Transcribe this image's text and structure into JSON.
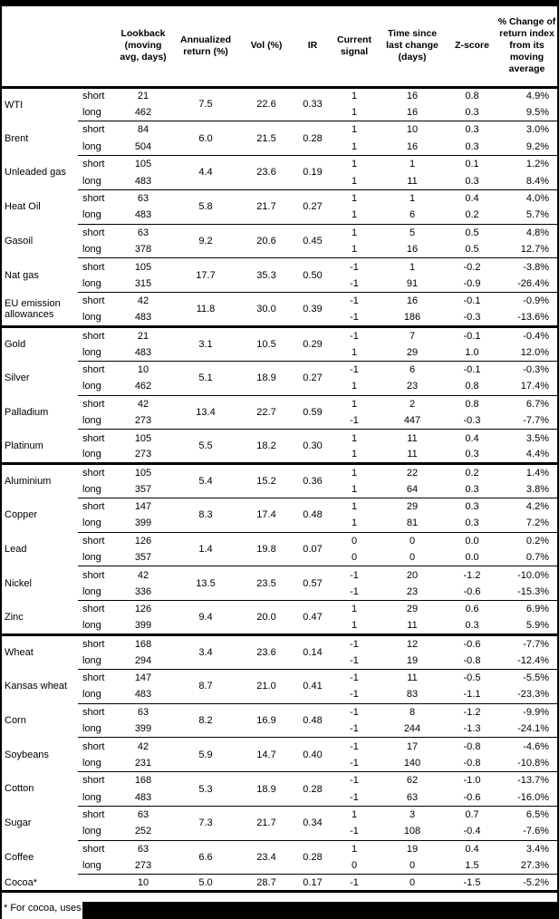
{
  "header": {
    "columns": [
      "",
      "",
      "Lookback\n(moving\navg, days)",
      "Annualized\nreturn (%)",
      "Vol (%)",
      "IR",
      "Current\nsignal",
      "Time since\nlast change\n(days)",
      "Z-score",
      "% Change of\nreturn index\nfrom its\nmoving\naverage"
    ]
  },
  "groups": [
    {
      "commodities": [
        {
          "name": "WTI",
          "ann_return": "7.5",
          "vol": "22.6",
          "ir": "0.33",
          "rows": [
            {
              "period": "short",
              "lookback": "21",
              "signal": "1",
              "time_since": "16",
              "z": "0.8",
              "change": "4.9%"
            },
            {
              "period": "long",
              "lookback": "462",
              "signal": "1",
              "time_since": "16",
              "z": "0.3",
              "change": "9.5%"
            }
          ]
        },
        {
          "name": "Brent",
          "ann_return": "6.0",
          "vol": "21.5",
          "ir": "0.28",
          "rows": [
            {
              "period": "short",
              "lookback": "84",
              "signal": "1",
              "time_since": "10",
              "z": "0.3",
              "change": "3.0%"
            },
            {
              "period": "long",
              "lookback": "504",
              "signal": "1",
              "time_since": "16",
              "z": "0.3",
              "change": "9.2%"
            }
          ]
        },
        {
          "name": "Unleaded gas",
          "ann_return": "4.4",
          "vol": "23.6",
          "ir": "0.19",
          "rows": [
            {
              "period": "short",
              "lookback": "105",
              "signal": "1",
              "time_since": "1",
              "z": "0.1",
              "change": "1.2%"
            },
            {
              "period": "long",
              "lookback": "483",
              "signal": "1",
              "time_since": "11",
              "z": "0.3",
              "change": "8.4%"
            }
          ]
        },
        {
          "name": "Heat Oil",
          "ann_return": "5.8",
          "vol": "21.7",
          "ir": "0.27",
          "rows": [
            {
              "period": "short",
              "lookback": "63",
              "signal": "1",
              "time_since": "1",
              "z": "0.4",
              "change": "4.0%"
            },
            {
              "period": "long",
              "lookback": "483",
              "signal": "1",
              "time_since": "6",
              "z": "0.2",
              "change": "5.7%"
            }
          ]
        },
        {
          "name": "Gasoil",
          "ann_return": "9.2",
          "vol": "20.6",
          "ir": "0.45",
          "rows": [
            {
              "period": "short",
              "lookback": "63",
              "signal": "1",
              "time_since": "5",
              "z": "0.5",
              "change": "4.8%"
            },
            {
              "period": "long",
              "lookback": "378",
              "signal": "1",
              "time_since": "16",
              "z": "0.5",
              "change": "12.7%"
            }
          ]
        },
        {
          "name": "Nat gas",
          "ann_return": "17.7",
          "vol": "35.3",
          "ir": "0.50",
          "rows": [
            {
              "period": "short",
              "lookback": "105",
              "signal": "-1",
              "time_since": "1",
              "z": "-0.2",
              "change": "-3.8%"
            },
            {
              "period": "long",
              "lookback": "315",
              "signal": "-1",
              "time_since": "91",
              "z": "-0.9",
              "change": "-26.4%"
            }
          ]
        },
        {
          "name": "EU emission allowances",
          "ann_return": "11.8",
          "vol": "30.0",
          "ir": "0.39",
          "rows": [
            {
              "period": "short",
              "lookback": "42",
              "signal": "-1",
              "time_since": "16",
              "z": "-0.1",
              "change": "-0.9%"
            },
            {
              "period": "long",
              "lookback": "483",
              "signal": "-1",
              "time_since": "186",
              "z": "-0.3",
              "change": "-13.6%"
            }
          ]
        }
      ]
    },
    {
      "commodities": [
        {
          "name": "Gold",
          "ann_return": "3.1",
          "vol": "10.5",
          "ir": "0.29",
          "rows": [
            {
              "period": "short",
              "lookback": "21",
              "signal": "-1",
              "time_since": "7",
              "z": "-0.1",
              "change": "-0.4%"
            },
            {
              "period": "long",
              "lookback": "483",
              "signal": "1",
              "time_since": "29",
              "z": "1.0",
              "change": "12.0%"
            }
          ]
        },
        {
          "name": "Silver",
          "ann_return": "5.1",
          "vol": "18.9",
          "ir": "0.27",
          "rows": [
            {
              "period": "short",
              "lookback": "10",
              "signal": "-1",
              "time_since": "6",
              "z": "-0.1",
              "change": "-0.3%"
            },
            {
              "period": "long",
              "lookback": "462",
              "signal": "1",
              "time_since": "23",
              "z": "0.8",
              "change": "17.4%"
            }
          ]
        },
        {
          "name": "Palladium",
          "ann_return": "13.4",
          "vol": "22.7",
          "ir": "0.59",
          "rows": [
            {
              "period": "short",
              "lookback": "42",
              "signal": "1",
              "time_since": "2",
              "z": "0.8",
              "change": "6.7%"
            },
            {
              "period": "long",
              "lookback": "273",
              "signal": "-1",
              "time_since": "447",
              "z": "-0.3",
              "change": "-7.7%"
            }
          ]
        },
        {
          "name": "Platinum",
          "ann_return": "5.5",
          "vol": "18.2",
          "ir": "0.30",
          "rows": [
            {
              "period": "short",
              "lookback": "105",
              "signal": "1",
              "time_since": "11",
              "z": "0.4",
              "change": "3.5%"
            },
            {
              "period": "long",
              "lookback": "273",
              "signal": "1",
              "time_since": "11",
              "z": "0.3",
              "change": "4.4%"
            }
          ]
        }
      ]
    },
    {
      "commodities": [
        {
          "name": "Aluminium",
          "ann_return": "5.4",
          "vol": "15.2",
          "ir": "0.36",
          "rows": [
            {
              "period": "short",
              "lookback": "105",
              "signal": "1",
              "time_since": "22",
              "z": "0.2",
              "change": "1.4%"
            },
            {
              "period": "long",
              "lookback": "357",
              "signal": "1",
              "time_since": "64",
              "z": "0.3",
              "change": "3.8%"
            }
          ]
        },
        {
          "name": "Copper",
          "ann_return": "8.3",
          "vol": "17.4",
          "ir": "0.48",
          "rows": [
            {
              "period": "short",
              "lookback": "147",
              "signal": "1",
              "time_since": "29",
              "z": "0.3",
              "change": "4.2%"
            },
            {
              "period": "long",
              "lookback": "399",
              "signal": "1",
              "time_since": "81",
              "z": "0.3",
              "change": "7.2%"
            }
          ]
        },
        {
          "name": "Lead",
          "ann_return": "1.4",
          "vol": "19.8",
          "ir": "0.07",
          "rows": [
            {
              "period": "short",
              "lookback": "126",
              "signal": "0",
              "time_since": "0",
              "z": "0.0",
              "change": "0.2%"
            },
            {
              "period": "long",
              "lookback": "357",
              "signal": "0",
              "time_since": "0",
              "z": "0.0",
              "change": "0.7%"
            }
          ]
        },
        {
          "name": "Nickel",
          "ann_return": "13.5",
          "vol": "23.5",
          "ir": "0.57",
          "rows": [
            {
              "period": "short",
              "lookback": "42",
              "signal": "-1",
              "time_since": "20",
              "z": "-1.2",
              "change": "-10.0%"
            },
            {
              "period": "long",
              "lookback": "336",
              "signal": "-1",
              "time_since": "23",
              "z": "-0.6",
              "change": "-15.3%"
            }
          ]
        },
        {
          "name": "Zinc",
          "ann_return": "9.4",
          "vol": "20.0",
          "ir": "0.47",
          "rows": [
            {
              "period": "short",
              "lookback": "126",
              "signal": "1",
              "time_since": "29",
              "z": "0.6",
              "change": "6.9%"
            },
            {
              "period": "long",
              "lookback": "399",
              "signal": "1",
              "time_since": "11",
              "z": "0.3",
              "change": "5.9%"
            }
          ]
        }
      ]
    },
    {
      "commodities": [
        {
          "name": "Wheat",
          "ann_return": "3.4",
          "vol": "23.6",
          "ir": "0.14",
          "rows": [
            {
              "period": "short",
              "lookback": "168",
              "signal": "-1",
              "time_since": "12",
              "z": "-0.6",
              "change": "-7.7%"
            },
            {
              "period": "long",
              "lookback": "294",
              "signal": "-1",
              "time_since": "19",
              "z": "-0.8",
              "change": "-12.4%"
            }
          ]
        },
        {
          "name": "Kansas wheat",
          "ann_return": "8.7",
          "vol": "21.0",
          "ir": "0.41",
          "rows": [
            {
              "period": "short",
              "lookback": "147",
              "signal": "-1",
              "time_since": "11",
              "z": "-0.5",
              "change": "-5.5%"
            },
            {
              "period": "long",
              "lookback": "483",
              "signal": "-1",
              "time_since": "83",
              "z": "-1.1",
              "change": "-23.3%"
            }
          ]
        },
        {
          "name": "Corn",
          "ann_return": "8.2",
          "vol": "16.9",
          "ir": "0.48",
          "rows": [
            {
              "period": "short",
              "lookback": "63",
              "signal": "-1",
              "time_since": "8",
              "z": "-1.2",
              "change": "-9.9%"
            },
            {
              "period": "long",
              "lookback": "399",
              "signal": "-1",
              "time_since": "244",
              "z": "-1.3",
              "change": "-24.1%"
            }
          ]
        },
        {
          "name": "Soybeans",
          "ann_return": "5.9",
          "vol": "14.7",
          "ir": "0.40",
          "rows": [
            {
              "period": "short",
              "lookback": "42",
              "signal": "-1",
              "time_since": "17",
              "z": "-0.8",
              "change": "-4.6%"
            },
            {
              "period": "long",
              "lookback": "231",
              "signal": "-1",
              "time_since": "140",
              "z": "-0.8",
              "change": "-10.8%"
            }
          ]
        },
        {
          "name": "Cotton",
          "ann_return": "5.3",
          "vol": "18.9",
          "ir": "0.28",
          "rows": [
            {
              "period": "short",
              "lookback": "168",
              "signal": "-1",
              "time_since": "62",
              "z": "-1.0",
              "change": "-13.7%"
            },
            {
              "period": "long",
              "lookback": "483",
              "signal": "-1",
              "time_since": "63",
              "z": "-0.6",
              "change": "-16.0%"
            }
          ]
        },
        {
          "name": "Sugar",
          "ann_return": "7.3",
          "vol": "21.7",
          "ir": "0.34",
          "rows": [
            {
              "period": "short",
              "lookback": "63",
              "signal": "1",
              "time_since": "3",
              "z": "0.7",
              "change": "6.5%"
            },
            {
              "period": "long",
              "lookback": "252",
              "signal": "-1",
              "time_since": "108",
              "z": "-0.4",
              "change": "-7.6%"
            }
          ]
        },
        {
          "name": "Coffee",
          "ann_return": "6.6",
          "vol": "23.4",
          "ir": "0.28",
          "rows": [
            {
              "period": "short",
              "lookback": "63",
              "signal": "1",
              "time_since": "19",
              "z": "0.4",
              "change": "3.4%"
            },
            {
              "period": "long",
              "lookback": "273",
              "signal": "0",
              "time_since": "0",
              "z": "1.5",
              "change": "27.3%"
            }
          ]
        },
        {
          "name": "Cocoa*",
          "ann_return": "5.0",
          "vol": "28.7",
          "ir": "0.17",
          "rows": [
            {
              "period": "",
              "lookback": "10",
              "signal": "-1",
              "time_since": "0",
              "z": "-1.5",
              "change": "-5.2%"
            }
          ]
        }
      ]
    }
  ],
  "footnote": "* For cocoa, uses o",
  "colors": {
    "text": "#000000",
    "background": "#ffffff",
    "border": "#000000",
    "redaction": "#000000"
  }
}
